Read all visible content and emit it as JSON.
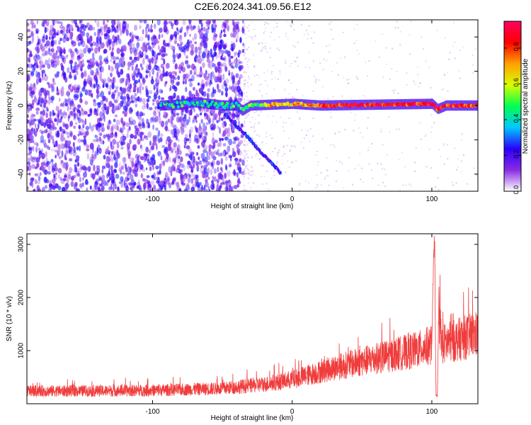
{
  "chart_data": [
    {
      "type": "heatmap",
      "title": "C2E6.2024.341.09.56.E12",
      "xlabel": "Height of straight line (km)",
      "ylabel": "Frequency (Hz)",
      "xlim": [
        -190,
        133
      ],
      "ylim": [
        -50,
        50
      ],
      "xticks": [
        -100,
        0,
        100
      ],
      "yticks": [
        -40,
        -20,
        0,
        20,
        40
      ],
      "colorbar": {
        "label": "Normalized spectral amplitude",
        "range": [
          0.0,
          0.95
        ],
        "ticks": [
          0.0,
          0.2,
          0.4,
          0.6,
          0.8
        ],
        "tick_labels": [
          "0.0",
          "0.2",
          "0.4",
          "0.6",
          "0.8"
        ],
        "colormap": [
          "#ffffff",
          "#8a2be2",
          "#2a00ff",
          "#00c8ff",
          "#00ff50",
          "#d8ff00",
          "#ffa000",
          "#ff0000",
          "#ff0060"
        ]
      },
      "features": [
        {
          "name": "broadband noise",
          "x_range": [
            -190,
            -35
          ],
          "freq_range": [
            -50,
            50
          ],
          "amplitude": 0.08
        },
        {
          "name": "main trace",
          "points": [
            [
              -95,
              0
            ],
            [
              -80,
              0.5
            ],
            [
              -70,
              2
            ],
            [
              -60,
              1
            ],
            [
              -50,
              0
            ],
            [
              -40,
              0
            ],
            [
              -36,
              -3
            ],
            [
              -30,
              0
            ],
            [
              0,
              1
            ],
            [
              20,
              0
            ],
            [
              100,
              1
            ],
            [
              104,
              -2
            ],
            [
              110,
              0
            ],
            [
              133,
              0
            ]
          ],
          "amplitude_range": [
            0.3,
            0.95
          ]
        },
        {
          "name": "descending branch",
          "points": [
            [
              -48,
              -5
            ],
            [
              -40,
              -12
            ],
            [
              -32,
              -18
            ],
            [
              -25,
              -25
            ],
            [
              -18,
              -31
            ],
            [
              -12,
              -36
            ],
            [
              -8,
              -40
            ]
          ],
          "amplitude": 0.25
        }
      ]
    },
    {
      "type": "line",
      "xlabel": "Height of straight line (km)",
      "ylabel": "SNR (10 * v/v)",
      "xlim": [
        -190,
        133
      ],
      "ylim": [
        0,
        3200
      ],
      "xticks": [
        -100,
        0,
        100
      ],
      "yticks": [
        1000,
        2000,
        3000
      ],
      "grid": false,
      "color": "#f03c3c",
      "series_envelope": [
        {
          "x": -190,
          "y": 250
        },
        {
          "x": -150,
          "y": 250
        },
        {
          "x": -100,
          "y": 260
        },
        {
          "x": -50,
          "y": 300
        },
        {
          "x": -20,
          "y": 380
        },
        {
          "x": 0,
          "y": 470
        },
        {
          "x": 30,
          "y": 700
        },
        {
          "x": 60,
          "y": 880
        },
        {
          "x": 90,
          "y": 1050
        },
        {
          "x": 100,
          "y": 1150
        },
        {
          "x": 101,
          "y": 2400
        },
        {
          "x": 102,
          "y": 3150
        },
        {
          "x": 103,
          "y": 150
        },
        {
          "x": 104,
          "y": 150
        },
        {
          "x": 105,
          "y": 1900
        },
        {
          "x": 107,
          "y": 1150
        },
        {
          "x": 133,
          "y": 1360
        }
      ]
    }
  ]
}
